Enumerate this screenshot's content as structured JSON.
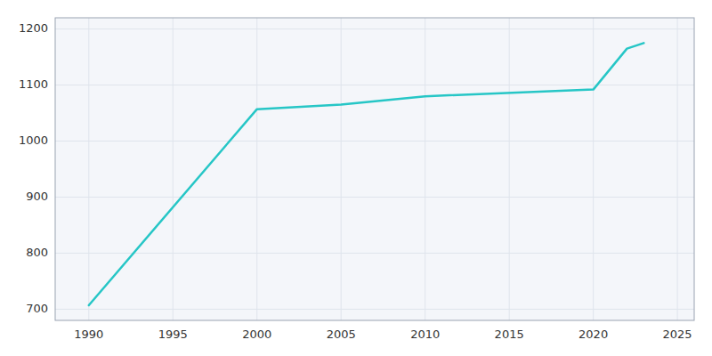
{
  "chart_data": {
    "type": "line",
    "x": [
      1990,
      2000,
      2005,
      2010,
      2020,
      2022,
      2023
    ],
    "values": [
      707,
      1057,
      1065,
      1080,
      1092,
      1165,
      1175
    ],
    "color": "#26c6c6",
    "xlim": [
      1988,
      2026
    ],
    "ylim": [
      680,
      1220
    ],
    "xticks": [
      1990,
      1995,
      2000,
      2005,
      2010,
      2015,
      2020,
      2025
    ],
    "yticks": [
      700,
      800,
      900,
      1000,
      1100,
      1200
    ],
    "grid": true
  }
}
